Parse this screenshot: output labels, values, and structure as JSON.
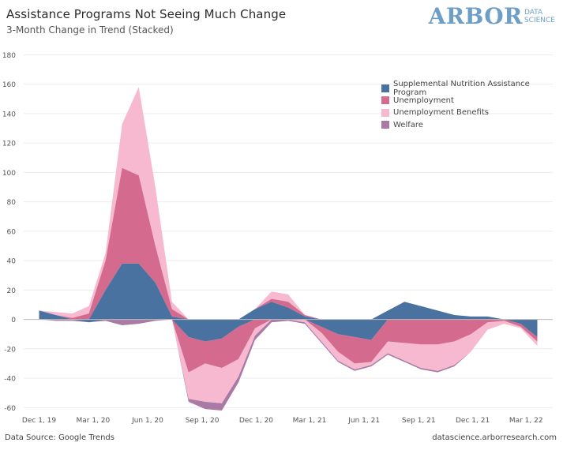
{
  "header": {
    "title": "Assistance Programs Not Seeing Much Change",
    "subtitle": "3-Month Change in Trend (Stacked)"
  },
  "logo": {
    "main": "ARBOR",
    "line1": "DATA",
    "line2": "SCIENCE"
  },
  "footer": {
    "source": "Data Source: Google Trends",
    "url": "datascience.arborresearch.com"
  },
  "chart_data": {
    "type": "area",
    "stacked": true,
    "title": "Assistance Programs Not Seeing Much Change",
    "subtitle": "3-Month Change in Trend (Stacked)",
    "xlabel": "",
    "ylabel": "",
    "xlim": [
      "2019-11-05",
      "2022-04-15"
    ],
    "ylim": [
      -62,
      184
    ],
    "y_ticks": [
      -60,
      -40,
      -20,
      0,
      20,
      40,
      60,
      80,
      100,
      120,
      140,
      160,
      180
    ],
    "x_tick_labels": [
      "Dec 1, 19",
      "Mar 1, 20",
      "Jun 1, 20",
      "Sep 1, 20",
      "Dec 1, 20",
      "Mar 1, 21",
      "Jun 1, 21",
      "Sep 1, 21",
      "Dec 1, 21",
      "Mar 1, 22"
    ],
    "x_tick_dates": [
      "2019-12-01",
      "2020-03-01",
      "2020-06-01",
      "2020-09-01",
      "2020-12-01",
      "2021-03-01",
      "2021-06-01",
      "2021-09-01",
      "2021-12-01",
      "2022-03-01"
    ],
    "grid": {
      "horizontal": true,
      "vertical": false
    },
    "legend_position": "right",
    "x": [
      "2019-12-01",
      "2019-12-29",
      "2020-01-26",
      "2020-02-23",
      "2020-03-22",
      "2020-04-19",
      "2020-05-17",
      "2020-06-14",
      "2020-07-12",
      "2020-08-09",
      "2020-09-06",
      "2020-10-04",
      "2020-11-01",
      "2020-11-29",
      "2020-12-27",
      "2021-01-24",
      "2021-02-21",
      "2021-03-21",
      "2021-04-18",
      "2021-05-16",
      "2021-06-13",
      "2021-07-11",
      "2021-08-08",
      "2021-09-05",
      "2021-10-03",
      "2021-10-31",
      "2021-11-28",
      "2021-12-26",
      "2022-01-23",
      "2022-02-20",
      "2022-03-20"
    ],
    "series": [
      {
        "name": "Supplemental Nutrition Assistance Program",
        "color": "#4a72a0",
        "values": [
          6,
          3,
          0,
          -2,
          20,
          38,
          38,
          25,
          2,
          -12,
          -15,
          -13,
          -5,
          7,
          12,
          8,
          2,
          -5,
          -10,
          -12,
          -14,
          6,
          12,
          9,
          6,
          3,
          2,
          2,
          0,
          -3,
          -12
        ]
      },
      {
        "name": "Unemployment",
        "color": "#d46b8f",
        "values": [
          0,
          0,
          1,
          4,
          20,
          65,
          60,
          25,
          5,
          -24,
          -15,
          -20,
          -22,
          -6,
          2,
          4,
          1,
          -4,
          -12,
          -18,
          -15,
          -15,
          -16,
          -17,
          -17,
          -15,
          -10,
          -2,
          -1,
          -2,
          -3
        ]
      },
      {
        "name": "Unemployment Benefits",
        "color": "#f6b9cf",
        "values": [
          0,
          2,
          3,
          5,
          5,
          30,
          60,
          40,
          5,
          -18,
          -26,
          -24,
          -12,
          -5,
          5,
          5,
          -2,
          -6,
          -6,
          -4,
          -2,
          -8,
          -12,
          -16,
          -18,
          -16,
          -12,
          -5,
          -2,
          -1,
          -3
        ]
      },
      {
        "name": "Welfare",
        "color": "#a97aa6",
        "values": [
          0,
          -1,
          -1,
          0,
          -1,
          -4,
          -3,
          -1,
          0,
          -2,
          -5,
          -5,
          -4,
          -3,
          -2,
          -1,
          -1,
          -1,
          -1,
          -1,
          -1,
          -1,
          -1,
          -1,
          -1,
          -1,
          0,
          0,
          0,
          0,
          0
        ]
      }
    ]
  }
}
